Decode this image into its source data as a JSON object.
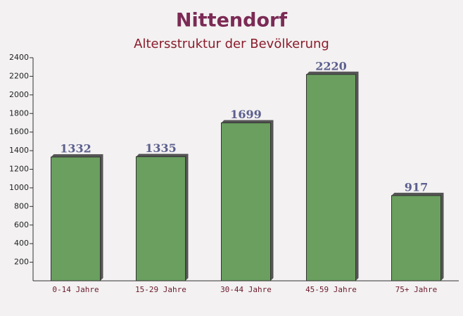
{
  "chart_data": {
    "type": "bar",
    "title": "Nittendorf",
    "subtitle": "Altersstruktur der Bevölkerung",
    "categories": [
      "0-14 Jahre",
      "15-29 Jahre",
      "30-44 Jahre",
      "45-59 Jahre",
      "75+ Jahre"
    ],
    "values": [
      1332,
      1335,
      1699,
      2220,
      917
    ],
    "color": "#6a9f5f",
    "ylim": [
      0,
      2400
    ],
    "yticks": [
      200,
      400,
      600,
      800,
      1000,
      1200,
      1400,
      1600,
      1800,
      2000,
      2200,
      2400
    ],
    "grid": false
  }
}
